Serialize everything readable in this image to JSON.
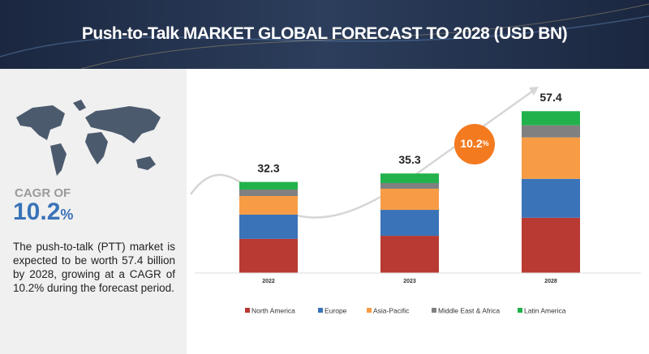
{
  "chart_data": {
    "type": "stacked-bar",
    "title": "Push-to-Talk MARKET GLOBAL FORECAST TO 2028 (USD BN)",
    "categories": [
      "2022",
      "2023",
      "2028"
    ],
    "series": [
      {
        "name": "North America",
        "color": "#b83a33",
        "values": [
          12.1,
          13.2,
          19.6
        ]
      },
      {
        "name": "Europe",
        "color": "#3a73b8",
        "values": [
          8.6,
          9.2,
          13.8
        ]
      },
      {
        "name": "Asia-Pacific",
        "color": "#f79c45",
        "values": [
          6.6,
          7.5,
          14.7
        ]
      },
      {
        "name": "Middle East & Africa",
        "color": "#808080",
        "values": [
          2.3,
          2.0,
          4.3
        ]
      },
      {
        "name": "Latin America",
        "color": "#22b24c",
        "values": [
          2.7,
          3.4,
          5.0
        ]
      }
    ],
    "totals": [
      32.3,
      35.3,
      57.4
    ],
    "legend": "bottom",
    "growth_badge": {
      "value": "10.2",
      "unit": "%"
    }
  },
  "sidebar": {
    "cagr_label": "CAGR OF",
    "cagr_value": "10.2",
    "cagr_unit": "%",
    "description": "The push-to-talk (PTT) market is expected to be worth 57.4 billion by 2028, growing at a CAGR of 10.2% during the forecast period."
  }
}
